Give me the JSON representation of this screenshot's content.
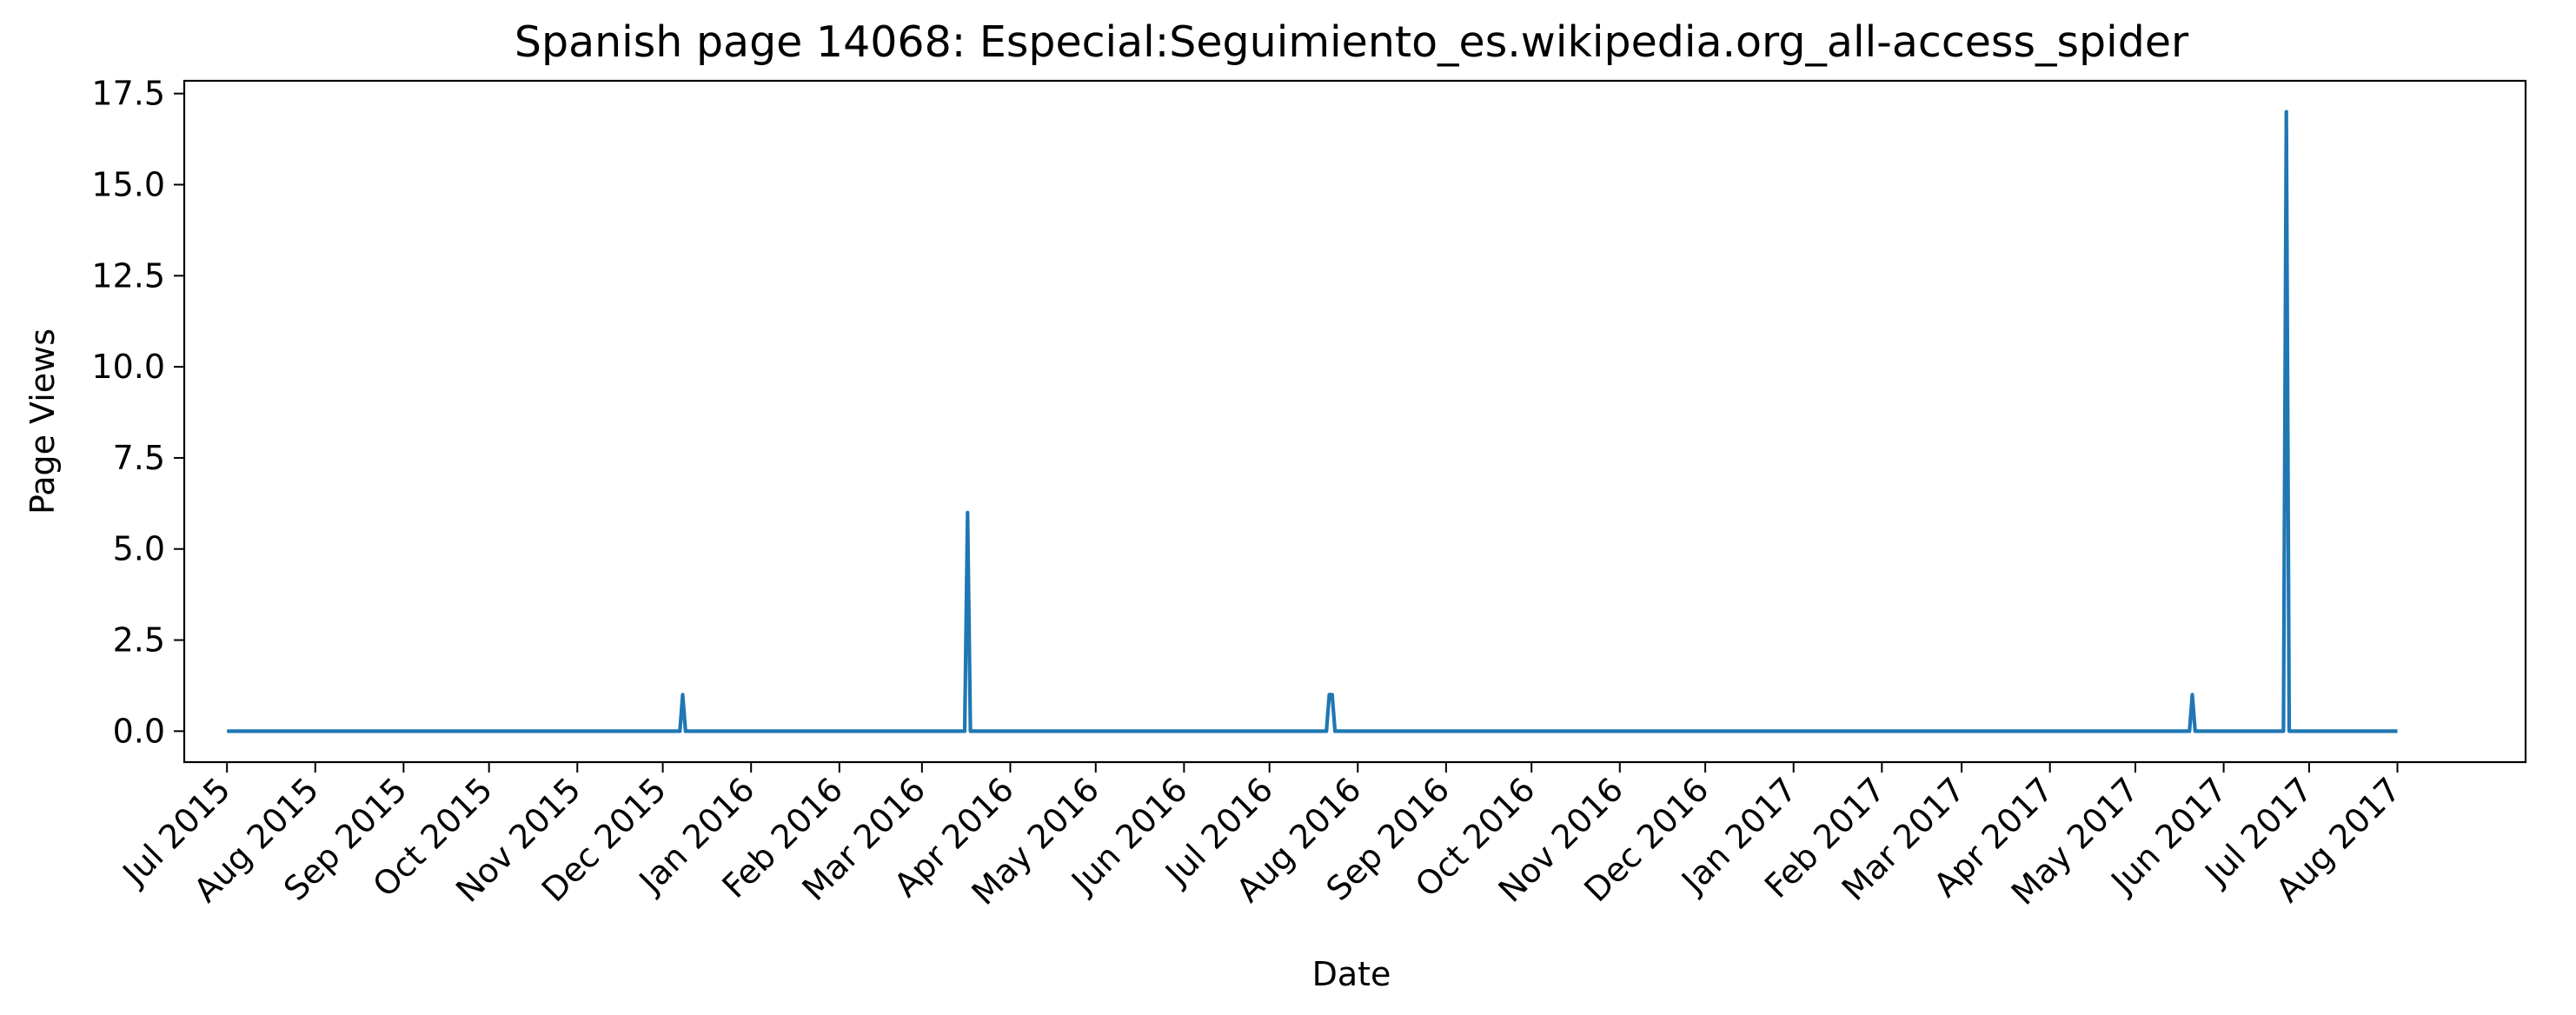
{
  "chart_data": {
    "type": "line",
    "title": "Spanish page 14068: Especial:Seguimiento_es.wikipedia.org_all-access_spider",
    "xlabel": "Date",
    "ylabel": "Page Views",
    "xlim": [
      "2015-06-16",
      "2017-09-15"
    ],
    "ylim": [
      -0.85,
      17.85
    ],
    "x_ticks": [
      {
        "date": "2015-07-01",
        "label": "Jul 2015"
      },
      {
        "date": "2015-08-01",
        "label": "Aug 2015"
      },
      {
        "date": "2015-09-01",
        "label": "Sep 2015"
      },
      {
        "date": "2015-10-01",
        "label": "Oct 2015"
      },
      {
        "date": "2015-11-01",
        "label": "Nov 2015"
      },
      {
        "date": "2015-12-01",
        "label": "Dec 2015"
      },
      {
        "date": "2016-01-01",
        "label": "Jan 2016"
      },
      {
        "date": "2016-02-01",
        "label": "Feb 2016"
      },
      {
        "date": "2016-03-01",
        "label": "Mar 2016"
      },
      {
        "date": "2016-04-01",
        "label": "Apr 2016"
      },
      {
        "date": "2016-05-01",
        "label": "May 2016"
      },
      {
        "date": "2016-06-01",
        "label": "Jun 2016"
      },
      {
        "date": "2016-07-01",
        "label": "Jul 2016"
      },
      {
        "date": "2016-08-01",
        "label": "Aug 2016"
      },
      {
        "date": "2016-09-01",
        "label": "Sep 2016"
      },
      {
        "date": "2016-10-01",
        "label": "Oct 2016"
      },
      {
        "date": "2016-11-01",
        "label": "Nov 2016"
      },
      {
        "date": "2016-12-01",
        "label": "Dec 2016"
      },
      {
        "date": "2017-01-01",
        "label": "Jan 2017"
      },
      {
        "date": "2017-02-01",
        "label": "Feb 2017"
      },
      {
        "date": "2017-03-01",
        "label": "Mar 2017"
      },
      {
        "date": "2017-04-01",
        "label": "Apr 2017"
      },
      {
        "date": "2017-05-01",
        "label": "May 2017"
      },
      {
        "date": "2017-06-01",
        "label": "Jun 2017"
      },
      {
        "date": "2017-07-01",
        "label": "Jul 2017"
      },
      {
        "date": "2017-08-01",
        "label": "Aug 2017"
      }
    ],
    "y_ticks": [
      {
        "value": 0.0,
        "label": "0.0"
      },
      {
        "value": 2.5,
        "label": "2.5"
      },
      {
        "value": 5.0,
        "label": "5.0"
      },
      {
        "value": 7.5,
        "label": "7.5"
      },
      {
        "value": 10.0,
        "label": "10.0"
      },
      {
        "value": 12.5,
        "label": "12.5"
      },
      {
        "value": 15.0,
        "label": "15.0"
      },
      {
        "value": 17.5,
        "label": "17.5"
      }
    ],
    "grid": false,
    "legend": "none",
    "series": [
      {
        "color": "#1f77b4",
        "start_date": "2015-07-01",
        "end_date": "2017-08-01",
        "baseline": 0,
        "points": [
          {
            "date": "2015-07-01",
            "value": 0
          },
          {
            "date": "2015-12-07",
            "value": 0
          },
          {
            "date": "2015-12-08",
            "value": 1
          },
          {
            "date": "2015-12-09",
            "value": 0
          },
          {
            "date": "2016-03-16",
            "value": 0
          },
          {
            "date": "2016-03-17",
            "value": 6
          },
          {
            "date": "2016-03-18",
            "value": 0
          },
          {
            "date": "2016-07-21",
            "value": 0
          },
          {
            "date": "2016-07-22",
            "value": 1
          },
          {
            "date": "2016-07-23",
            "value": 1
          },
          {
            "date": "2016-07-24",
            "value": 0
          },
          {
            "date": "2017-05-20",
            "value": 0
          },
          {
            "date": "2017-05-21",
            "value": 1
          },
          {
            "date": "2017-05-22",
            "value": 0
          },
          {
            "date": "2017-06-22",
            "value": 0
          },
          {
            "date": "2017-06-23",
            "value": 17
          },
          {
            "date": "2017-06-24",
            "value": 0
          },
          {
            "date": "2017-08-01",
            "value": 0
          }
        ]
      }
    ]
  }
}
